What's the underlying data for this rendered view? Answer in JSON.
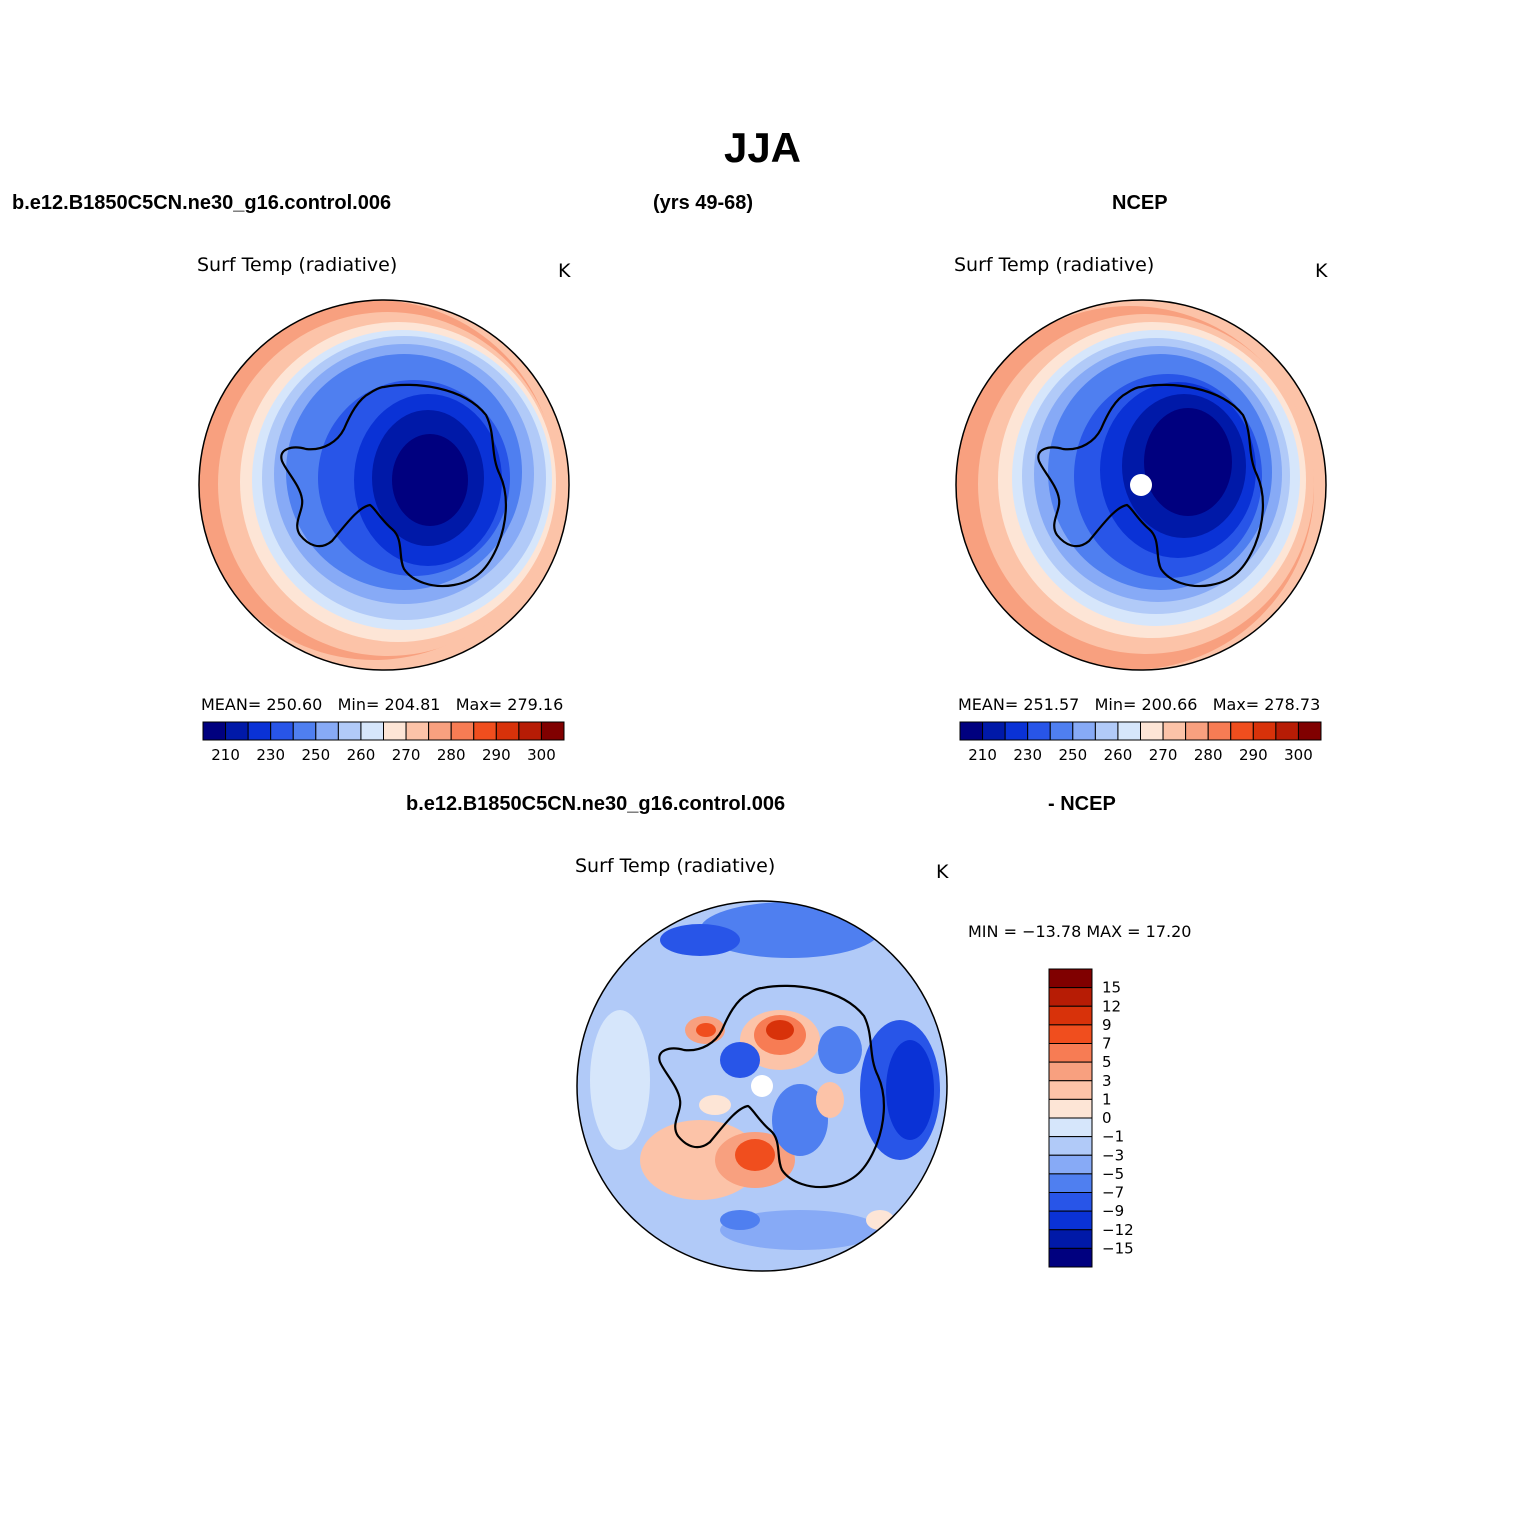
{
  "title": "JJA",
  "header": {
    "case_name": "b.e12.B1850C5CN.ne30_g16.control.006",
    "years": "(yrs 49-68)",
    "obs": "NCEP"
  },
  "panel_left": {
    "field": "Surf Temp (radiative)",
    "units": "K",
    "stats": {
      "mean_label": "MEAN=",
      "mean": "250.60",
      "min_label": "Min=",
      "min": "204.81",
      "max_label": "Max=",
      "max": "279.16"
    }
  },
  "panel_right": {
    "field": "Surf Temp (radiative)",
    "units": "K",
    "stats": {
      "mean_label": "MEAN=",
      "mean": "251.57",
      "min_label": "Min=",
      "min": "200.66",
      "max_label": "Max=",
      "max": "278.73"
    }
  },
  "diff": {
    "case_name": "b.e12.B1850C5CN.ne30_g16.control.006",
    "minus_obs": "- NCEP",
    "field": "Surf Temp (radiative)",
    "units": "K",
    "minmax": "MIN = −13.78 MAX =  17.20"
  },
  "chart_data": {
    "type": "heatmap",
    "projection": "polar stereographic (south pole)",
    "colorbar_abs": {
      "ticks": [
        "210",
        "230",
        "250",
        "260",
        "270",
        "280",
        "290",
        "300"
      ],
      "colors": [
        "#00007f",
        "#0019a8",
        "#0a32d6",
        "#2855e8",
        "#4f7ff0",
        "#87aaf6",
        "#b1caf8",
        "#d6e6fb",
        "#fde5d6",
        "#fcc3a8",
        "#f8a07f",
        "#f77c54",
        "#f04e1e",
        "#d8320a",
        "#b71c05",
        "#800000"
      ]
    },
    "colorbar_diff": {
      "ticks": [
        "15",
        "12",
        "9",
        "7",
        "5",
        "3",
        "1",
        "0",
        "−1",
        "−3",
        "−5",
        "−7",
        "−9",
        "−12",
        "−15"
      ],
      "colors": [
        "#800000",
        "#b71c05",
        "#d8320a",
        "#f04e1e",
        "#f77c54",
        "#f8a07f",
        "#fcc3a8",
        "#fde5d6",
        "#d6e6fb",
        "#b1caf8",
        "#87aaf6",
        "#4f7ff0",
        "#2855e8",
        "#0a32d6",
        "#0019a8",
        "#00007f"
      ]
    }
  }
}
